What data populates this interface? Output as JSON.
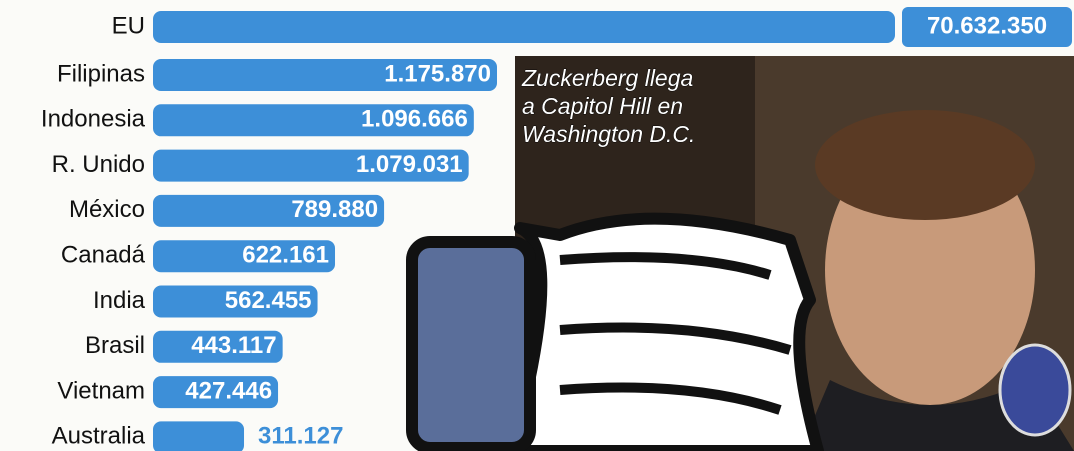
{
  "chart_data": {
    "type": "hbar",
    "categories": [
      "EU",
      "Filipinas",
      "Indonesia",
      "R. Unido",
      "México",
      "Canadá",
      "India",
      "Brasil",
      "Vietnam",
      "Australia"
    ],
    "values": [
      70632350,
      1175870,
      1096666,
      1079031,
      789880,
      622161,
      562455,
      443117,
      427446,
      311127
    ],
    "value_labels": [
      "70.632.350",
      "1.175.870",
      "1.096.666",
      "1.079.031",
      "789.880",
      "622.161",
      "562.455",
      "443.117",
      "427.446",
      "311.127"
    ],
    "color": "#3d8fd8",
    "annotations": [
      "Zuckerberg llega",
      "a Capitol Hill en",
      "Washington D.C."
    ]
  }
}
